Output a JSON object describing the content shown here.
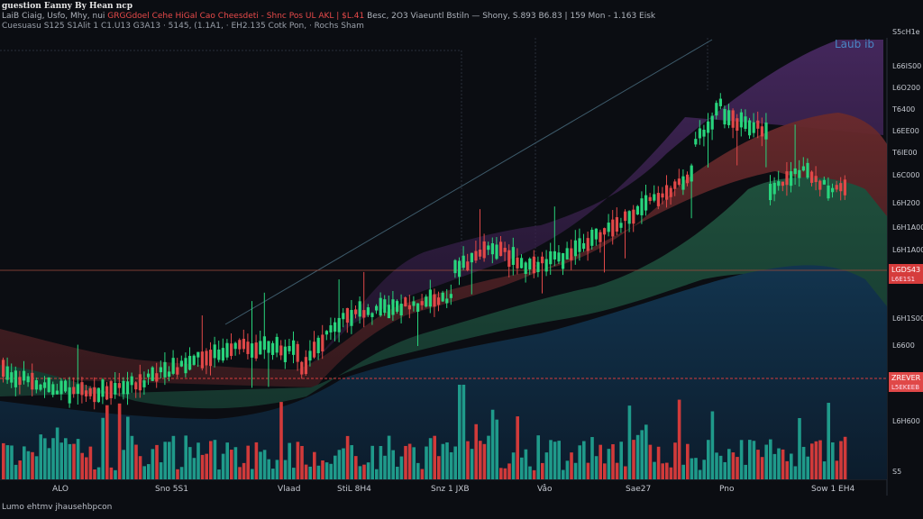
{
  "header": {
    "title": "guestion Eanny By Hean ncp",
    "ohlc_left": "LaiB Ciaig, Usfo, Mhy, nui",
    "ohlc_red": "GRGGdoel Cehe HiGal Cao Cheesdeti - Shnc Pos UL AKL | $L.41",
    "ohlc_right": "Besc, 2O3 Viaeuntl Bstiln — Shony, S.893 B6.83 | 159 Mon - 1.163 Eisk",
    "indicator_line": "Cuesuasu S125 S1Alit 1 C1.U13 G3A13 · 5145, (1.1A1, · EH2.135 Cotk Pon, · Rochs Sham"
  },
  "watermark": "Laub ib",
  "price_axis": {
    "labels": [
      "S5cH1e",
      "L66IS00",
      "L6O200",
      "T6400",
      "L6EE00",
      "T6IE00",
      "L6C000",
      "L6H200",
      "L6H1A00",
      "L6H1A00",
      "L6IS00",
      "L6H1S00",
      "L6600",
      "L6H600",
      "S5"
    ],
    "tags": [
      {
        "text": "LGDS43",
        "subtext": "L6E1S1",
        "color": "#d63c3c"
      },
      {
        "text": "ZREVER",
        "subtext": "L5EKEEB",
        "color": "#e04848"
      }
    ]
  },
  "time_axis": {
    "labels": [
      "ALO",
      "Sno 5S1",
      "Vlaad",
      "StiL 8H4",
      "Snz 1 JXB",
      "Våo",
      "Sae27",
      "Pno",
      "Sow 1 EH4"
    ]
  },
  "footer": {
    "text": "Lumo ehtmv jhausehbpcon"
  },
  "colors": {
    "background": "#0b0d12",
    "up": "#28d47c",
    "down": "#e04848",
    "volume_up": "#1f9a8a",
    "volume_down": "#d13a3a",
    "band_outer": "#3b2250",
    "band_red": "#5a2326",
    "band_green": "#1c4535",
    "band_blue": "#10283c"
  }
}
